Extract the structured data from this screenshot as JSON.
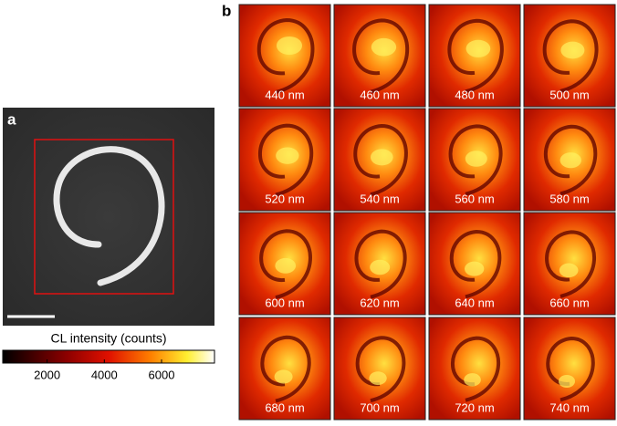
{
  "panel_a": {
    "label": "a",
    "colorbar": {
      "title": "CL intensity (counts)",
      "lim": [
        450,
        7850
      ],
      "ticks": [
        2000,
        4000,
        6000
      ]
    }
  },
  "panel_b": {
    "label": "b",
    "tiles": [
      "440 nm",
      "460 nm",
      "480 nm",
      "500 nm",
      "520 nm",
      "540 nm",
      "560 nm",
      "580 nm",
      "600 nm",
      "620 nm",
      "640 nm",
      "660 nm",
      "680 nm",
      "700 nm",
      "720 nm",
      "740 nm"
    ]
  }
}
